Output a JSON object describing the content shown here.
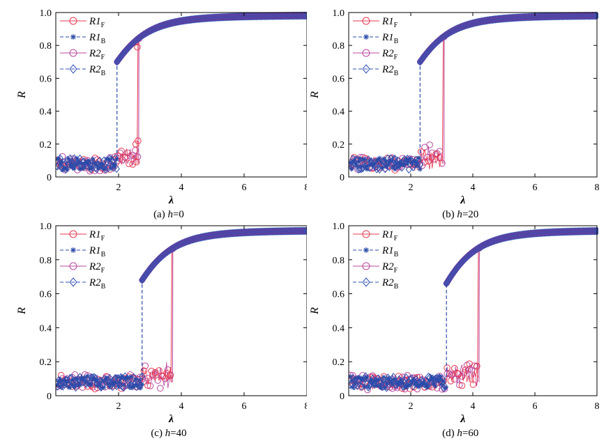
{
  "colors": {
    "r1f": "#e8384f",
    "r1b": "#2a4aa8",
    "r2f": "#b8479e",
    "r2b": "#2f4fb0"
  },
  "legend": [
    {
      "base": "R1",
      "sub": "F",
      "marker": "circle",
      "dash": "solid",
      "color_key": "r1f"
    },
    {
      "base": "R1",
      "sub": "B",
      "marker": "star",
      "dash": "dashed",
      "color_key": "r1b"
    },
    {
      "base": "R2",
      "sub": "F",
      "marker": "circle",
      "dash": "solid",
      "color_key": "r2f"
    },
    {
      "base": "R2",
      "sub": "B",
      "marker": "diamond",
      "dash": "dashed",
      "color_key": "r2b"
    }
  ],
  "chart_data": [
    {
      "type": "scatter",
      "caption": "(a) h = 0",
      "caption_prefix": "(a) ",
      "caption_var": "h",
      "caption_value": "=0",
      "xlabel": "λ",
      "ylabel": "R",
      "xlim": [
        0,
        8
      ],
      "ylim": [
        0,
        1
      ],
      "xticks": [
        2,
        4,
        6,
        8
      ],
      "yticks": [
        0,
        0.2,
        0.4,
        0.6,
        0.8,
        1.0
      ],
      "ytick_labels": [
        "0",
        "0.2",
        "0.4",
        "0.6",
        "0.8",
        "1.0"
      ],
      "legend_position": "top-left",
      "series": [
        {
          "name": "R1_F",
          "low_end": 2.55,
          "low_points": [
            [
              2.55,
              0.06
            ],
            [
              2.58,
              0.82
            ],
            [
              2.6,
              0.8
            ],
            [
              2.62,
              0.88
            ],
            [
              2.65,
              0.89
            ]
          ]
        },
        {
          "name": "R1_B",
          "jump_lambda": 1.95,
          "jump_top": 0.7
        },
        {
          "name": "R2_F",
          "low_end": 2.62,
          "jump_top": 0.88
        },
        {
          "name": "R2_B",
          "jump_lambda": 1.95,
          "jump_top": 0.7
        }
      ],
      "forward_jump": 2.62,
      "backward_jump": 1.95,
      "low_level": 0.08,
      "sync_start": 0.7,
      "sync_end": 0.985
    },
    {
      "type": "scatter",
      "caption": "(b) h = 20",
      "caption_prefix": "(b) ",
      "caption_var": "h",
      "caption_value": "=20",
      "xlabel": "λ",
      "ylabel": "R",
      "xlim": [
        0,
        8
      ],
      "ylim": [
        0,
        1
      ],
      "xticks": [
        2,
        4,
        6,
        8
      ],
      "yticks": [
        0,
        0.2,
        0.4,
        0.6,
        0.8,
        1.0
      ],
      "ytick_labels": [
        "0",
        "0.2",
        "0.4",
        "0.6",
        "0.8",
        "1.0"
      ],
      "legend_position": "top-left",
      "forward_jump": 3.05,
      "backward_jump": 2.3,
      "low_level": 0.08,
      "sync_start": 0.7,
      "sync_end": 0.985
    },
    {
      "type": "scatter",
      "caption": "(c) h = 40",
      "caption_prefix": "(c) ",
      "caption_var": "h",
      "caption_value": "=40",
      "xlabel": "λ",
      "ylabel": "R",
      "xlim": [
        0,
        8
      ],
      "ylim": [
        0,
        1
      ],
      "xticks": [
        2,
        4,
        6,
        8
      ],
      "yticks": [
        0,
        0.2,
        0.4,
        0.6,
        0.8,
        1.0
      ],
      "ytick_labels": [
        "0",
        "0.2",
        "0.4",
        "0.6",
        "0.8",
        "1.0"
      ],
      "legend_position": "top-left",
      "forward_jump": 3.7,
      "backward_jump": 2.75,
      "low_level": 0.08,
      "sync_start": 0.68,
      "sync_end": 0.975
    },
    {
      "type": "scatter",
      "caption": "(d) h = 60",
      "caption_prefix": "(d) ",
      "caption_var": "h",
      "caption_value": "=60",
      "xlabel": "λ",
      "ylabel": "R",
      "xlim": [
        0,
        8
      ],
      "ylim": [
        0,
        1
      ],
      "xticks": [
        2,
        4,
        6,
        8
      ],
      "yticks": [
        0,
        0.2,
        0.4,
        0.6,
        0.8,
        1.0
      ],
      "ytick_labels": [
        "0",
        "0.2",
        "0.4",
        "0.6",
        "0.8",
        "1.0"
      ],
      "legend_position": "top-left",
      "forward_jump": 4.18,
      "backward_jump": 3.15,
      "low_level": 0.08,
      "sync_start": 0.66,
      "sync_end": 0.975
    }
  ]
}
